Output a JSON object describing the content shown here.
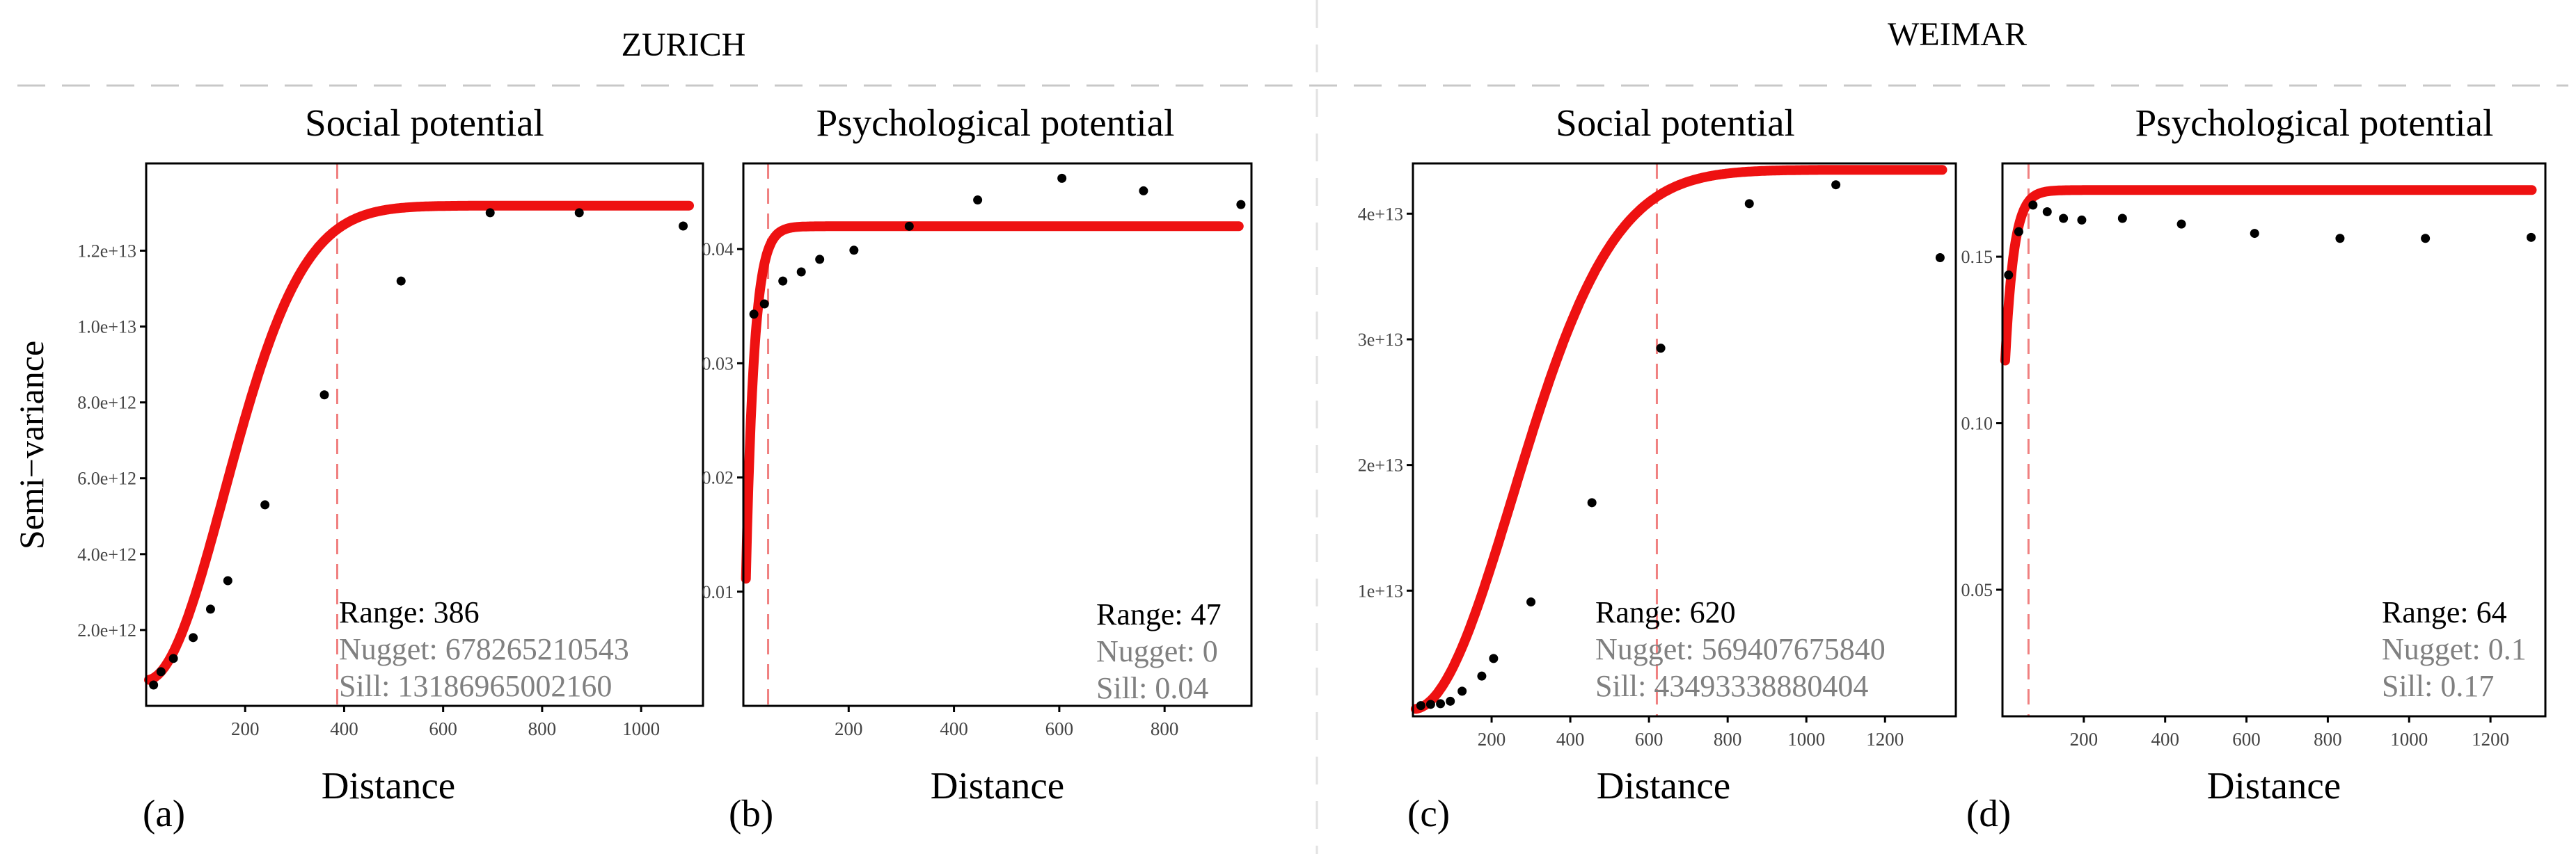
{
  "colors": {
    "curve": "#ee1111",
    "range_line": "#f08080",
    "points": "#000000",
    "gray_text": "#808080",
    "separator": "#c8c8c8"
  },
  "regions": [
    {
      "title": "ZURICH"
    },
    {
      "title": "WEIMAR"
    }
  ],
  "shared": {
    "ylabel": "Semi−variance",
    "xlabel": "Distance"
  },
  "chart_data": [
    {
      "type": "scatter",
      "panel_label": "(a)",
      "title": "Social potential",
      "xlabel": "Distance",
      "ylabel": "Semi−variance",
      "xlim": [
        0,
        1125
      ],
      "ylim": [
        0,
        14300000000000.0
      ],
      "x_ticks": [
        200,
        400,
        600,
        800,
        1000
      ],
      "x_tick_labels": [
        "200",
        "400",
        "600",
        "800",
        "1000"
      ],
      "y_ticks": [
        2000000000000.0,
        4000000000000.0,
        6000000000000.0,
        8000000000000.0,
        10000000000000.0,
        12000000000000.0
      ],
      "y_tick_labels": [
        "2.0e+12",
        "4.0e+12",
        "6.0e+12",
        "8.0e+12",
        "1.0e+13",
        "1.2e+13"
      ],
      "model": {
        "kind": "gaussian",
        "nugget": 678265210543,
        "sill": 13186965002160,
        "range": 386
      },
      "points": {
        "x": [
          15,
          30,
          55,
          95,
          130,
          165,
          240,
          360,
          515,
          695,
          875,
          1085
        ],
        "y": [
          550000000000.0,
          900000000000.0,
          1250000000000.0,
          1800000000000.0,
          2550000000000.0,
          3300000000000.0,
          5300000000000.0,
          8200000000000.0,
          11200000000000.0,
          13000000000000.0,
          13000000000000.0,
          12650000000000.0
        ]
      },
      "annotation": {
        "range": "Range: 386",
        "nugget": "Nugget: 678265210543",
        "sill": "Sill: 13186965002160"
      }
    },
    {
      "type": "scatter",
      "panel_label": "(b)",
      "title": "Psychological potential",
      "xlabel": "Distance",
      "ylabel": "",
      "xlim": [
        0,
        965
      ],
      "ylim": [
        0.0,
        0.0475
      ],
      "x_ticks": [
        200,
        400,
        600,
        800
      ],
      "x_tick_labels": [
        "200",
        "400",
        "600",
        "800"
      ],
      "y_ticks": [
        0.01,
        0.02,
        0.03,
        0.04
      ],
      "y_tick_labels": [
        "0.01",
        "0.02",
        "0.03",
        "0.04"
      ],
      "model": {
        "kind": "exponential",
        "nugget": 0,
        "sill": 0.042,
        "range": 47
      },
      "points": {
        "x": [
          20,
          40,
          75,
          110,
          145,
          210,
          315,
          445,
          605,
          760,
          945
        ],
        "y": [
          0.0343,
          0.0352,
          0.0372,
          0.038,
          0.0391,
          0.0399,
          0.042,
          0.0443,
          0.0462,
          0.0451,
          0.0439
        ]
      },
      "annotation": {
        "range": "Range: 47",
        "nugget": "Nugget: 0",
        "sill": "Sill: 0.04"
      }
    },
    {
      "type": "scatter",
      "panel_label": "(c)",
      "title": "Social potential",
      "xlabel": "Distance",
      "ylabel": "",
      "xlim": [
        0,
        1380
      ],
      "ylim": [
        0,
        44000000000000.0
      ],
      "x_ticks": [
        200,
        400,
        600,
        800,
        1000,
        1200
      ],
      "x_tick_labels": [
        "200",
        "400",
        "600",
        "800",
        "1000",
        "1200"
      ],
      "y_ticks": [
        10000000000000.0,
        20000000000000.0,
        30000000000000.0,
        40000000000000.0
      ],
      "y_tick_labels": [
        "1e+13",
        "2e+13",
        "3e+13",
        "4e+13"
      ],
      "model": {
        "kind": "gaussian",
        "nugget": 569407675840,
        "sill": 43493338880404,
        "range": 620
      },
      "points": {
        "x": [
          20,
          45,
          70,
          95,
          125,
          175,
          205,
          300,
          455,
          630,
          855,
          1075,
          1340
        ],
        "y": [
          850000000000.0,
          950000000000.0,
          1000000000000.0,
          1200000000000.0,
          2000000000000.0,
          3200000000000.0,
          4600000000000.0,
          9100000000000.0,
          17000000000000.0,
          29300000000000.0,
          40800000000000.0,
          42300000000000.0,
          36500000000000.0
        ]
      },
      "annotation": {
        "range": "Range: 620",
        "nugget": "Nugget: 569407675840",
        "sill": "Sill: 43493338880404"
      }
    },
    {
      "type": "scatter",
      "panel_label": "(d)",
      "title": "Psychological potential",
      "xlabel": "Distance",
      "ylabel": "",
      "xlim": [
        0,
        1335
      ],
      "ylim": [
        0.012,
        0.178
      ],
      "x_ticks": [
        200,
        400,
        600,
        800,
        1000,
        1200
      ],
      "x_tick_labels": [
        "200",
        "400",
        "600",
        "800",
        "1000",
        "1200"
      ],
      "y_ticks": [
        0.05,
        0.1,
        0.15
      ],
      "y_tick_labels": [
        "0.05",
        "0.10",
        "0.15"
      ],
      "model": {
        "kind": "exponential",
        "nugget": 0.1,
        "sill": 0.17,
        "range": 64
      },
      "points": {
        "x": [
          15,
          40,
          75,
          110,
          150,
          195,
          295,
          440,
          620,
          830,
          1040,
          1300
        ],
        "y": [
          0.1445,
          0.1575,
          0.1655,
          0.1635,
          0.1615,
          0.161,
          0.1615,
          0.1598,
          0.157,
          0.1555,
          0.1555,
          0.1558
        ]
      },
      "annotation": {
        "range": "Range: 64",
        "nugget": "Nugget: 0.1",
        "sill": "Sill: 0.17"
      }
    }
  ]
}
